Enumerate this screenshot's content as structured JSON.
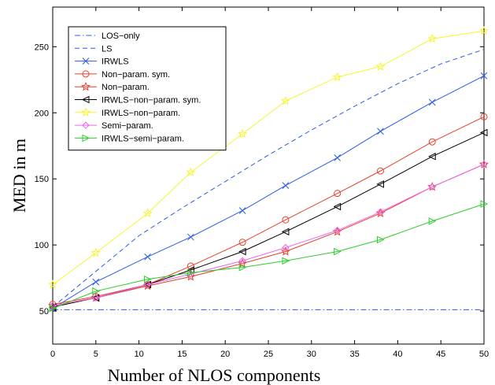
{
  "chart_data": {
    "type": "line",
    "xlabel": "Number of NLOS components",
    "ylabel": "MED in m",
    "xlim": [
      0,
      50
    ],
    "ylim": [
      25,
      280
    ],
    "xticks": [
      0,
      5,
      10,
      15,
      20,
      25,
      30,
      35,
      40,
      45,
      50
    ],
    "yticks": [
      50,
      100,
      150,
      200,
      250
    ],
    "grid": false,
    "legend_position": "top-left",
    "series": [
      {
        "name": "LOS−only",
        "color": "#2b5ce6",
        "dash": "dashdot",
        "marker": "none",
        "x": [
          0,
          50
        ],
        "y": [
          51,
          51
        ]
      },
      {
        "name": "LS",
        "color": "#2b5ce6",
        "dash": "dashed",
        "marker": "none",
        "x": [
          0,
          5,
          10,
          15,
          20,
          25,
          30,
          35,
          40,
          45,
          50
        ],
        "y": [
          53,
          80,
          107,
          128,
          148,
          168,
          187,
          205,
          222,
          237,
          248
        ]
      },
      {
        "name": "IRWLS",
        "color": "#2b5ce6",
        "dash": "solid",
        "marker": "x",
        "x": [
          0,
          5,
          11,
          16,
          22,
          27,
          33,
          38,
          44,
          50
        ],
        "y": [
          52,
          72,
          91,
          106,
          126,
          145,
          166,
          186,
          208,
          228
        ]
      },
      {
        "name": "Non−param. sym.",
        "color": "#e8402a",
        "dash": "solid",
        "marker": "circle",
        "x": [
          0,
          5,
          11,
          16,
          22,
          27,
          33,
          38,
          44,
          50
        ],
        "y": [
          55,
          61,
          70,
          84,
          102,
          119,
          139,
          156,
          178,
          197
        ]
      },
      {
        "name": "Non−param.",
        "color": "#e8402a",
        "dash": "solid",
        "marker": "star",
        "x": [
          0,
          5,
          11,
          16,
          22,
          27,
          33,
          38,
          44,
          50
        ],
        "y": [
          54,
          60,
          69,
          76,
          86,
          95,
          110,
          124,
          144,
          161
        ]
      },
      {
        "name": "IRWLS−non−param. sym.",
        "color": "#000000",
        "dash": "solid",
        "marker": "triangle-left",
        "x": [
          0,
          5,
          11,
          16,
          22,
          27,
          33,
          38,
          44,
          50
        ],
        "y": [
          53,
          60,
          70,
          81,
          95,
          110,
          129,
          146,
          167,
          185
        ]
      },
      {
        "name": "IRWLS−non−param.",
        "color": "#f5f532",
        "dash": "solid",
        "marker": "star",
        "x": [
          0,
          5,
          11,
          16,
          22,
          27,
          33,
          38,
          44,
          50
        ],
        "y": [
          70,
          94,
          124,
          155,
          184,
          209,
          227,
          235,
          256,
          262
        ]
      },
      {
        "name": "Semi−param.",
        "color": "#ee66ee",
        "dash": "solid",
        "marker": "diamond",
        "x": [
          0,
          5,
          11,
          16,
          22,
          27,
          33,
          38,
          44,
          50
        ],
        "y": [
          54,
          60,
          70,
          78,
          88,
          98,
          111,
          125,
          144,
          161
        ]
      },
      {
        "name": "IRWLS−semi−param.",
        "color": "#2ecc2e",
        "dash": "solid",
        "marker": "triangle-right",
        "x": [
          0,
          5,
          11,
          16,
          22,
          27,
          33,
          38,
          44,
          50
        ],
        "y": [
          52,
          65,
          74,
          79,
          83,
          88,
          95,
          104,
          118,
          131
        ]
      }
    ]
  }
}
